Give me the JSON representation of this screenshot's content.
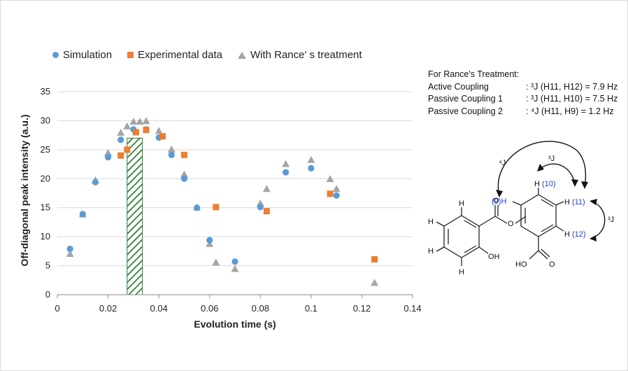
{
  "legend": {
    "simulation": "Simulation",
    "experimental": "Experimental data",
    "rance": "With Rance' s treatment"
  },
  "colors": {
    "simulation": "#5b9bd5",
    "experimental": "#ed7d31",
    "rance": "#a5a5a5",
    "hatch": "#2e7d32"
  },
  "chart_data": {
    "type": "scatter",
    "xlabel": "Evolution time (s)",
    "ylabel": "Off-diagonal peak intensity (a.u.)",
    "xlim": [
      0,
      0.14
    ],
    "ylim": [
      0,
      35
    ],
    "xticks": [
      "0",
      "0.02",
      "0.04",
      "0.06",
      "0.08",
      "0.1",
      "0.12",
      "0.14"
    ],
    "yticks": [
      "0",
      "5",
      "10",
      "15",
      "20",
      "25",
      "30",
      "35"
    ],
    "grid": "horizontal",
    "legend_position": "top",
    "series": [
      {
        "name": "Simulation",
        "marker": "circle",
        "x": [
          0.005,
          0.01,
          0.015,
          0.02,
          0.025,
          0.03,
          0.035,
          0.04,
          0.045,
          0.05,
          0.055,
          0.06,
          0.07,
          0.08,
          0.09,
          0.1,
          0.11
        ],
        "y": [
          7.9,
          13.9,
          19.4,
          23.7,
          26.7,
          28.5,
          28.5,
          27.1,
          24.1,
          20.0,
          15.0,
          9.4,
          5.7,
          15.1,
          21.1,
          21.8,
          17.1
        ]
      },
      {
        "name": "Experimental data",
        "marker": "square",
        "x": [
          0.025,
          0.0275,
          0.031,
          0.035,
          0.0415,
          0.05,
          0.0625,
          0.0825,
          0.1075,
          0.125
        ],
        "y": [
          24.0,
          25.0,
          28.0,
          28.4,
          27.3,
          24.1,
          15.1,
          14.4,
          17.4,
          6.1
        ]
      },
      {
        "name": "With Rance' s treatment",
        "marker": "triangle",
        "x": [
          0.005,
          0.01,
          0.015,
          0.02,
          0.025,
          0.0275,
          0.03,
          0.0325,
          0.035,
          0.04,
          0.045,
          0.05,
          0.055,
          0.06,
          0.0625,
          0.07,
          0.08,
          0.0825,
          0.09,
          0.1,
          0.1075,
          0.11,
          0.125
        ],
        "y": [
          7.0,
          13.8,
          19.7,
          24.4,
          27.9,
          29.0,
          29.8,
          29.8,
          29.9,
          28.2,
          25.0,
          20.7,
          15.0,
          8.7,
          5.5,
          4.4,
          15.7,
          18.2,
          22.5,
          23.2,
          19.9,
          18.2,
          2.0
        ]
      }
    ],
    "highlight_band": {
      "x": [
        0.0275,
        0.0335
      ],
      "y": [
        0,
        27
      ],
      "pattern": "diagonal-hatch"
    }
  },
  "info": {
    "title": "For Rance's Treatment:",
    "rows": [
      {
        "label": "Active Coupling",
        "value": ": ³J (H11, H12) = 7.9 Hz"
      },
      {
        "label": "Passive Coupling 1",
        "value": ": ³J (H11, H10) = 7.5 Hz"
      },
      {
        "label": "Passive Coupling 2",
        "value": ": ⁴J (H11, H9) = 1.2 Hz"
      }
    ]
  },
  "molecule": {
    "labels": {
      "h9": "(9)H",
      "h10_h": "H",
      "h10_n": "(10)",
      "h11_h": "H",
      "h11_n": "(11)",
      "h12_h": "H",
      "h12_n": "(12)",
      "j4": "⁴J",
      "j3a": "³J",
      "j3b": "³J",
      "o_ester": "O",
      "o_carbonyl": "O",
      "oh": "OH",
      "hooc": "HO",
      "o_acid": "O",
      "h_a": "H",
      "h_b": "H",
      "h_c": "H",
      "h_d": "H"
    }
  }
}
